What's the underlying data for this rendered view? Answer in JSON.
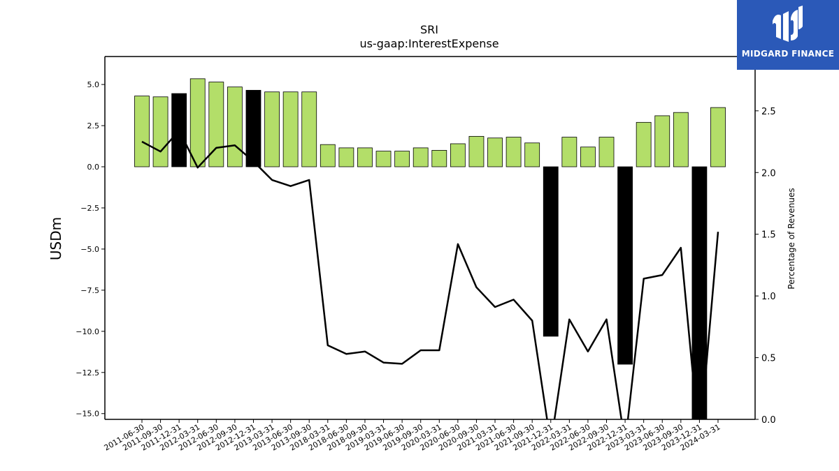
{
  "chart_data": {
    "type": "bar",
    "title": "SRI",
    "subtitle": "us-gaap:InterestExpense",
    "ylabel": "USDm",
    "y2label": "Percentage of Revenues",
    "ylim": [
      -15.35,
      6.7
    ],
    "y2lim": [
      0.0,
      2.94
    ],
    "yticks": [
      5.0,
      2.5,
      0.0,
      -2.5,
      -5.0,
      -7.5,
      -10.0,
      -12.5,
      -15.0
    ],
    "ytick_labels": [
      "5.0",
      "2.5",
      "0.0",
      "−2.5",
      "−5.0",
      "−7.5",
      "−10.0",
      "−12.5",
      "−15.0"
    ],
    "y2ticks": [
      0.0,
      0.5,
      1.0,
      1.5,
      2.0,
      2.5
    ],
    "y2tick_labels": [
      "0.0",
      "0.5",
      "1.0",
      "1.5",
      "2.0",
      "2.5"
    ],
    "categories": [
      "2011-06-30",
      "2011-09-30",
      "2011-12-31",
      "2012-03-31",
      "2012-06-30",
      "2012-09-30",
      "2012-12-31",
      "2013-03-31",
      "2013-06-30",
      "2013-09-30",
      "2018-03-31",
      "2018-06-30",
      "2018-09-30",
      "2019-03-31",
      "2019-06-30",
      "2019-09-30",
      "2020-03-31",
      "2020-06-30",
      "2020-09-30",
      "2021-03-31",
      "2021-06-30",
      "2021-09-30",
      "2021-12-31",
      "2022-03-31",
      "2022-06-30",
      "2022-09-30",
      "2022-12-31",
      "2023-03-31",
      "2023-06-30",
      "2023-09-30",
      "2023-12-31",
      "2024-03-31"
    ],
    "series": [
      {
        "kind": "bar",
        "values": [
          4.3,
          4.25,
          4.45,
          5.35,
          5.15,
          4.85,
          4.65,
          4.55,
          4.55,
          4.55,
          1.35,
          1.15,
          1.15,
          0.95,
          0.95,
          1.15,
          1.0,
          1.4,
          1.85,
          1.75,
          1.8,
          1.45,
          -10.3,
          1.8,
          1.2,
          1.8,
          -12.0,
          2.7,
          3.1,
          3.3,
          -15.35,
          3.6
        ],
        "highlight": [
          false,
          false,
          true,
          false,
          false,
          false,
          true,
          false,
          false,
          false,
          false,
          false,
          false,
          false,
          false,
          false,
          false,
          false,
          false,
          false,
          false,
          false,
          true,
          false,
          false,
          false,
          true,
          false,
          false,
          false,
          true,
          false
        ],
        "color": "#b3de69",
        "highlight_color": "#000000"
      },
      {
        "kind": "line",
        "axis": "right",
        "values": [
          2.25,
          2.17,
          2.34,
          2.04,
          2.2,
          2.22,
          2.09,
          1.94,
          1.89,
          1.94,
          0.6,
          0.53,
          0.55,
          0.46,
          0.45,
          0.56,
          0.56,
          1.42,
          1.07,
          0.91,
          0.97,
          0.8,
          -0.2,
          0.81,
          0.55,
          0.81,
          -0.2,
          1.14,
          1.17,
          1.39,
          -0.2,
          1.52
        ],
        "color": "#000000"
      }
    ]
  },
  "logo": {
    "text": "MIDGARD FINANCE",
    "bg": "#2b59b8"
  }
}
